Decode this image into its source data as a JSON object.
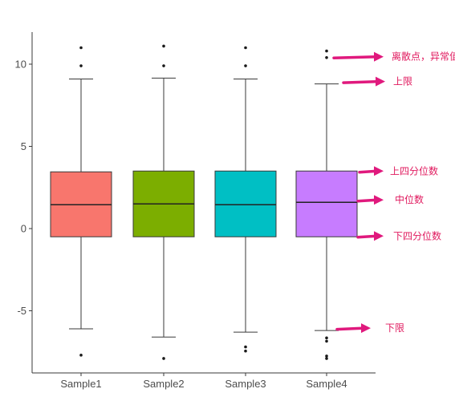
{
  "chart_data": {
    "type": "box",
    "title": "",
    "xlabel": "",
    "ylabel": "",
    "categories": [
      "Sample1",
      "Sample2",
      "Sample3",
      "Sample4"
    ],
    "ylim": [
      -8.5,
      12
    ],
    "yticks": [
      -5,
      0,
      5,
      10
    ],
    "ytick_labels": [
      "-5",
      "0",
      "5",
      "10"
    ],
    "grid": false,
    "legend": "none",
    "boxes": [
      {
        "name": "Sample1",
        "color": "#F8766D",
        "whisker_low": -6.1,
        "q1": -0.5,
        "median": 1.45,
        "q3": 3.45,
        "whisker_high": 9.1,
        "outliers": [
          9.9,
          11.0,
          -7.7
        ]
      },
      {
        "name": "Sample2",
        "color": "#7CAE00",
        "whisker_low": -6.6,
        "q1": -0.5,
        "median": 1.5,
        "q3": 3.5,
        "whisker_high": 9.15,
        "outliers": [
          9.9,
          11.1,
          -7.9
        ]
      },
      {
        "name": "Sample3",
        "color": "#00BFC4",
        "whisker_low": -6.3,
        "q1": -0.5,
        "median": 1.45,
        "q3": 3.5,
        "whisker_high": 9.1,
        "outliers": [
          9.9,
          11.0,
          -7.2,
          -7.45
        ]
      },
      {
        "name": "Sample4",
        "color": "#C77CFF",
        "whisker_low": -6.2,
        "q1": -0.5,
        "median": 1.6,
        "q3": 3.5,
        "whisker_high": 8.8,
        "outliers": [
          10.4,
          10.8,
          -6.65,
          -6.85,
          -7.75,
          -7.9
        ]
      }
    ],
    "annotations": [
      {
        "text": "离散点，异常值",
        "points_to": 10.6
      },
      {
        "text": "上限",
        "points_to": 8.8
      },
      {
        "text": "上四分位数",
        "points_to": 3.5
      },
      {
        "text": "中位数",
        "points_to": 1.6
      },
      {
        "text": "下四分位数",
        "points_to": -0.5
      },
      {
        "text": "下限",
        "points_to": -6.2
      }
    ],
    "annotation_color": "#E0197D"
  }
}
